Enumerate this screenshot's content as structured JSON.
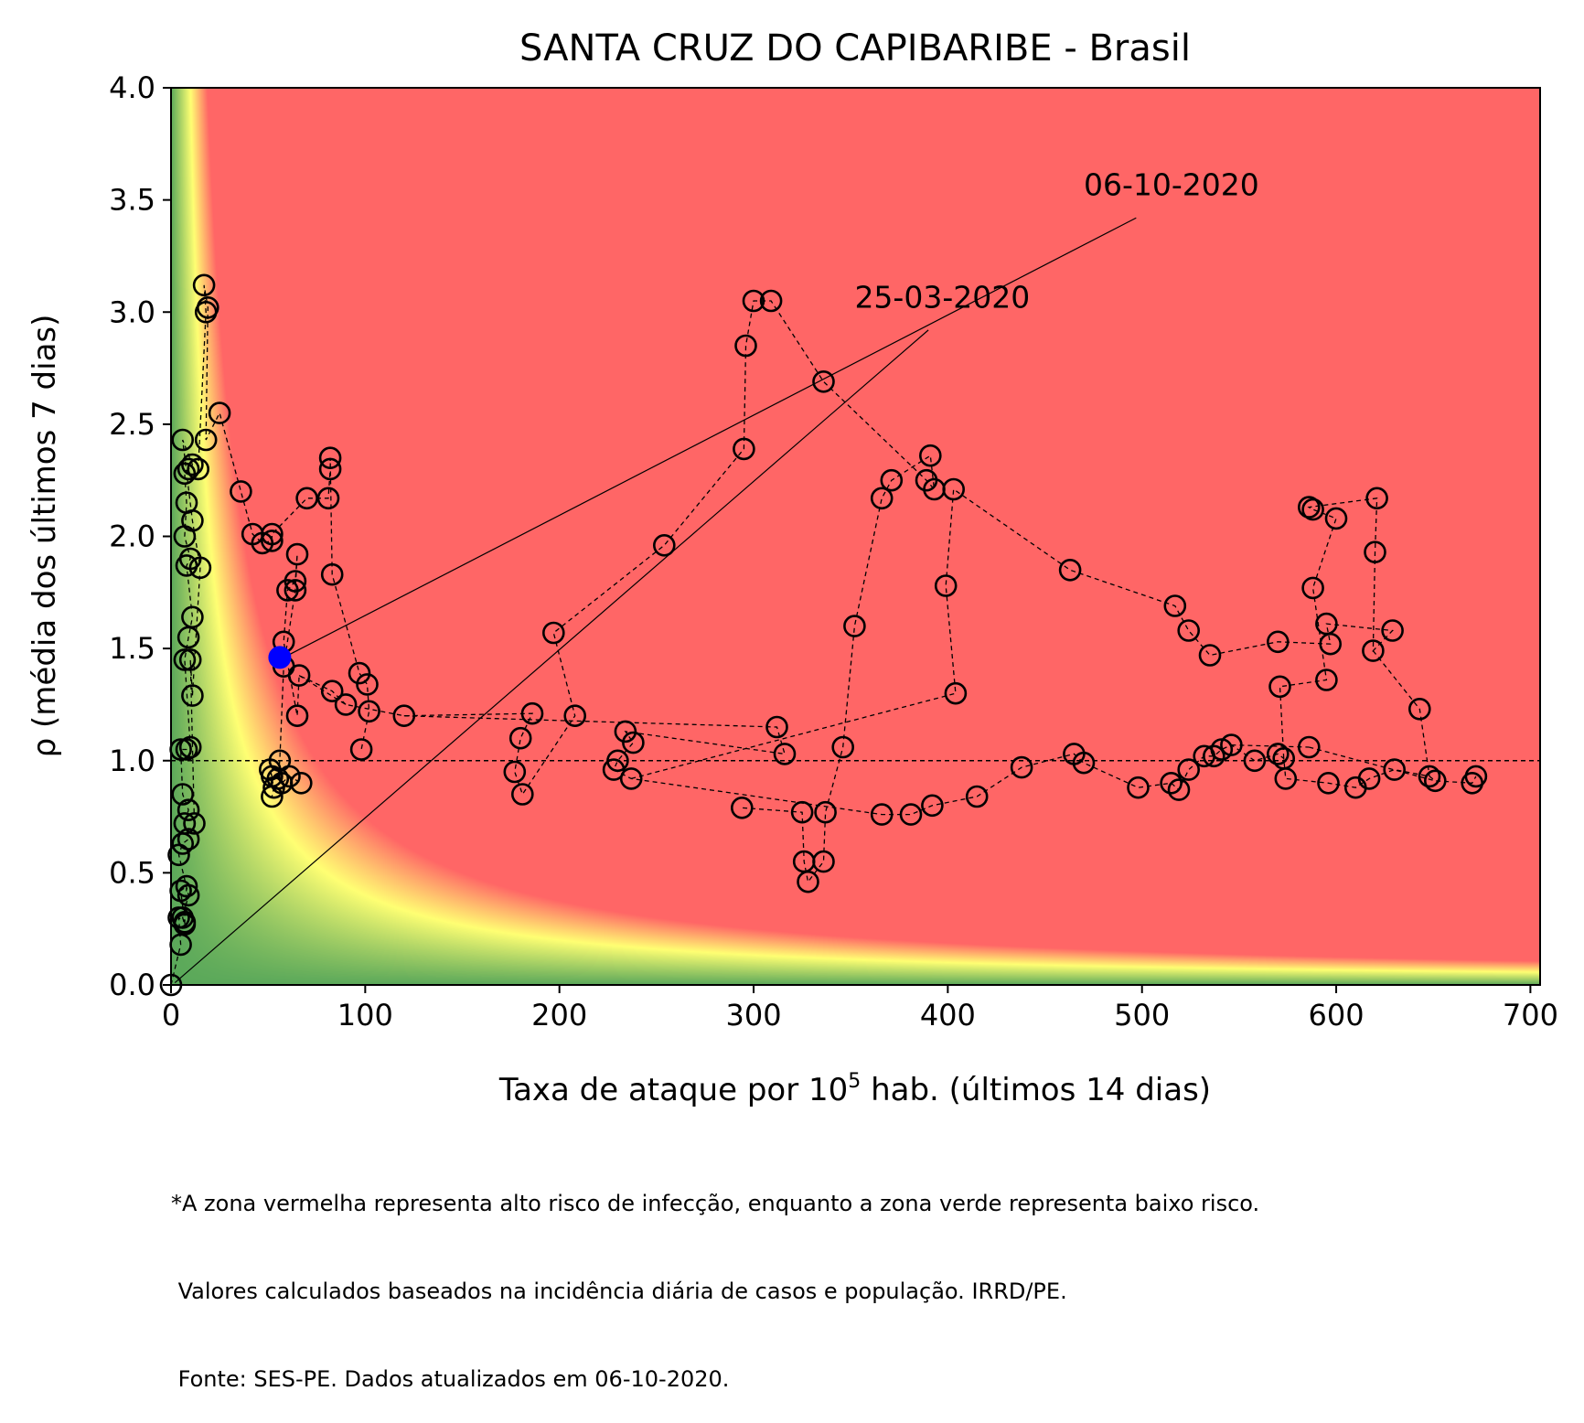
{
  "chart_data": {
    "type": "scatter",
    "title": "SANTA CRUZ DO CAPIBARIBE - Brasil",
    "xlabel": "Taxa de ataque por 10",
    "xlabel_sup": "5",
    "xlabel_suffix": " hab. (últimos 14 dias)",
    "ylabel": "ρ (média dos últimos 7 dias)",
    "xlim": [
      0,
      705
    ],
    "ylim": [
      0,
      4.0
    ],
    "xticks": [
      0,
      100,
      200,
      300,
      400,
      500,
      600,
      700
    ],
    "yticks": [
      "0.0",
      "0.5",
      "1.0",
      "1.5",
      "2.0",
      "2.5",
      "3.0",
      "3.5",
      "4.0"
    ],
    "reference_line_y": 1.0,
    "colors": {
      "high_risk": "#ff6666",
      "transition": "#ffff73",
      "low_risk": "#5aa85a",
      "current_point": "#0000ff",
      "marker_edge": "#000000"
    },
    "annotations": [
      {
        "text": "06-10-2020",
        "text_x": 470,
        "text_y": 3.52,
        "arrow_from": [
          497,
          3.42
        ],
        "arrow_to": [
          58,
          1.46
        ]
      },
      {
        "text": "25-03-2020",
        "text_x": 352,
        "text_y": 3.02,
        "arrow_from": [
          390,
          2.92
        ],
        "arrow_to": [
          2,
          0.01
        ]
      }
    ],
    "current_point": {
      "x": 56,
      "y": 1.46
    },
    "points": [
      [
        0,
        0
      ],
      [
        5,
        0.18
      ],
      [
        4,
        0.3
      ],
      [
        7,
        0.28
      ],
      [
        5,
        0.42
      ],
      [
        8,
        0.44
      ],
      [
        7,
        0.27
      ],
      [
        6,
        0.3
      ],
      [
        9,
        0.4
      ],
      [
        4,
        0.58
      ],
      [
        6,
        0.63
      ],
      [
        9,
        0.65
      ],
      [
        7,
        0.72
      ],
      [
        9,
        0.78
      ],
      [
        6,
        0.85
      ],
      [
        5,
        1.05
      ],
      [
        8,
        1.05
      ],
      [
        10,
        1.06
      ],
      [
        7,
        1.45
      ],
      [
        9,
        1.55
      ],
      [
        11,
        1.64
      ],
      [
        8,
        1.87
      ],
      [
        10,
        1.9
      ],
      [
        7,
        2.0
      ],
      [
        8,
        2.15
      ],
      [
        7,
        2.28
      ],
      [
        9,
        2.3
      ],
      [
        11,
        2.32
      ],
      [
        6,
        2.43
      ],
      [
        11,
        2.07
      ],
      [
        15,
        1.86
      ],
      [
        11,
        1.29
      ],
      [
        10,
        1.45
      ],
      [
        12,
        0.72
      ],
      [
        14,
        2.3
      ],
      [
        18,
        3.0
      ],
      [
        17,
        3.12
      ],
      [
        19,
        3.02
      ],
      [
        18,
        2.43
      ],
      [
        25,
        2.55
      ],
      [
        36,
        2.2
      ],
      [
        42,
        2.01
      ],
      [
        47,
        1.97
      ],
      [
        52,
        1.98
      ],
      [
        52,
        2.01
      ],
      [
        70,
        2.17
      ],
      [
        81,
        2.17
      ],
      [
        82,
        2.3
      ],
      [
        82,
        2.35
      ],
      [
        83,
        1.83
      ],
      [
        97,
        1.39
      ],
      [
        101,
        1.34
      ],
      [
        102,
        1.22
      ],
      [
        98,
        1.05
      ],
      [
        90,
        1.25
      ],
      [
        83,
        1.31
      ],
      [
        66,
        1.38
      ],
      [
        65,
        1.2
      ],
      [
        58,
        1.53
      ],
      [
        60,
        1.76
      ],
      [
        64,
        1.8
      ],
      [
        65,
        1.92
      ],
      [
        64,
        1.76
      ],
      [
        58,
        1.42
      ],
      [
        56,
        1.0
      ],
      [
        55,
        0.92
      ],
      [
        57,
        0.9
      ],
      [
        61,
        0.93
      ],
      [
        67,
        0.9
      ],
      [
        52,
        0.93
      ],
      [
        51,
        0.96
      ],
      [
        53,
        0.88
      ],
      [
        52,
        0.84
      ],
      [
        120,
        1.2
      ],
      [
        186,
        1.21
      ],
      [
        180,
        1.1
      ],
      [
        177,
        0.95
      ],
      [
        181,
        0.85
      ],
      [
        208,
        1.2
      ],
      [
        197,
        1.57
      ],
      [
        254,
        1.96
      ],
      [
        295,
        2.39
      ],
      [
        296,
        2.85
      ],
      [
        300,
        3.05
      ],
      [
        309,
        3.05
      ],
      [
        336,
        2.69
      ],
      [
        389,
        2.25
      ],
      [
        393,
        2.21
      ],
      [
        391,
        2.36
      ],
      [
        371,
        2.25
      ],
      [
        366,
        2.17
      ],
      [
        352,
        1.6
      ],
      [
        346,
        1.06
      ],
      [
        337,
        0.77
      ],
      [
        336,
        0.55
      ],
      [
        328,
        0.46
      ],
      [
        326,
        0.55
      ],
      [
        325,
        0.77
      ],
      [
        294,
        0.79
      ],
      [
        312,
        1.15
      ],
      [
        316,
        1.03
      ],
      [
        234,
        1.13
      ],
      [
        238,
        1.08
      ],
      [
        230,
        1.0
      ],
      [
        228,
        0.96
      ],
      [
        237,
        0.92
      ],
      [
        366,
        0.76
      ],
      [
        381,
        0.76
      ],
      [
        392,
        0.8
      ],
      [
        415,
        0.84
      ],
      [
        438,
        0.97
      ],
      [
        465,
        1.03
      ],
      [
        470,
        0.99
      ],
      [
        498,
        0.88
      ],
      [
        515,
        0.9
      ],
      [
        519,
        0.87
      ],
      [
        524,
        0.96
      ],
      [
        532,
        1.02
      ],
      [
        537,
        1.02
      ],
      [
        541,
        1.05
      ],
      [
        546,
        1.07
      ],
      [
        558,
        1.0
      ],
      [
        570,
        1.03
      ],
      [
        573,
        1.01
      ],
      [
        574,
        0.92
      ],
      [
        596,
        0.9
      ],
      [
        610,
        0.88
      ],
      [
        617,
        0.92
      ],
      [
        630,
        0.96
      ],
      [
        648,
        0.93
      ],
      [
        651,
        0.91
      ],
      [
        670,
        0.9
      ],
      [
        672,
        0.93
      ],
      [
        404,
        1.3
      ],
      [
        399,
        1.78
      ],
      [
        403,
        2.21
      ],
      [
        463,
        1.85
      ],
      [
        517,
        1.69
      ],
      [
        524,
        1.58
      ],
      [
        535,
        1.47
      ],
      [
        570,
        1.53
      ],
      [
        597,
        1.52
      ],
      [
        595,
        1.61
      ],
      [
        629,
        1.58
      ],
      [
        619,
        1.49
      ],
      [
        620,
        1.93
      ],
      [
        621,
        2.17
      ],
      [
        586,
        2.13
      ],
      [
        588,
        2.12
      ],
      [
        600,
        2.08
      ],
      [
        588,
        1.77
      ],
      [
        595,
        1.36
      ],
      [
        571,
        1.33
      ],
      [
        643,
        1.23
      ],
      [
        586,
        1.06
      ]
    ],
    "path_segments": [
      [
        [
          0,
          0
        ],
        [
          5,
          0.18
        ],
        [
          4,
          0.3
        ],
        [
          7,
          0.28
        ],
        [
          5,
          0.42
        ],
        [
          8,
          0.44
        ],
        [
          7,
          0.27
        ],
        [
          6,
          0.3
        ],
        [
          9,
          0.4
        ],
        [
          4,
          0.58
        ],
        [
          6,
          0.63
        ],
        [
          9,
          0.65
        ],
        [
          7,
          0.72
        ],
        [
          9,
          0.78
        ],
        [
          6,
          0.85
        ],
        [
          5,
          1.05
        ],
        [
          8,
          1.05
        ],
        [
          10,
          1.06
        ],
        [
          7,
          1.45
        ],
        [
          9,
          1.55
        ],
        [
          11,
          1.64
        ],
        [
          8,
          1.87
        ],
        [
          10,
          1.9
        ],
        [
          7,
          2.0
        ],
        [
          8,
          2.15
        ],
        [
          7,
          2.28
        ],
        [
          9,
          2.3
        ],
        [
          11,
          2.32
        ],
        [
          6,
          2.43
        ],
        [
          11,
          2.07
        ],
        [
          15,
          1.86
        ],
        [
          11,
          1.29
        ],
        [
          10,
          1.45
        ],
        [
          12,
          0.72
        ]
      ],
      [
        [
          14,
          2.3
        ],
        [
          18,
          3.0
        ],
        [
          17,
          3.12
        ],
        [
          19,
          3.02
        ],
        [
          18,
          2.43
        ],
        [
          25,
          2.55
        ],
        [
          36,
          2.2
        ],
        [
          42,
          2.01
        ],
        [
          47,
          1.97
        ],
        [
          52,
          1.98
        ],
        [
          52,
          2.01
        ],
        [
          70,
          2.17
        ],
        [
          81,
          2.17
        ],
        [
          82,
          2.3
        ],
        [
          82,
          2.35
        ],
        [
          83,
          1.83
        ],
        [
          97,
          1.39
        ],
        [
          101,
          1.34
        ],
        [
          102,
          1.22
        ],
        [
          98,
          1.05
        ]
      ],
      [
        [
          90,
          1.25
        ],
        [
          83,
          1.31
        ],
        [
          66,
          1.38
        ],
        [
          65,
          1.2
        ],
        [
          58,
          1.53
        ],
        [
          60,
          1.76
        ],
        [
          64,
          1.8
        ],
        [
          65,
          1.92
        ],
        [
          64,
          1.76
        ],
        [
          58,
          1.42
        ],
        [
          56,
          1.0
        ],
        [
          55,
          0.92
        ],
        [
          57,
          0.9
        ],
        [
          61,
          0.93
        ],
        [
          67,
          0.9
        ]
      ],
      [
        [
          52,
          0.93
        ],
        [
          51,
          0.96
        ],
        [
          53,
          0.88
        ],
        [
          52,
          0.84
        ]
      ],
      [
        [
          66,
          1.38
        ],
        [
          90,
          1.25
        ],
        [
          120,
          1.2
        ],
        [
          186,
          1.21
        ],
        [
          180,
          1.1
        ],
        [
          177,
          0.95
        ],
        [
          181,
          0.85
        ],
        [
          208,
          1.2
        ],
        [
          197,
          1.57
        ],
        [
          254,
          1.96
        ],
        [
          295,
          2.39
        ],
        [
          296,
          2.85
        ],
        [
          300,
          3.05
        ],
        [
          309,
          3.05
        ],
        [
          336,
          2.69
        ],
        [
          389,
          2.25
        ],
        [
          393,
          2.21
        ],
        [
          391,
          2.36
        ],
        [
          371,
          2.25
        ],
        [
          366,
          2.17
        ],
        [
          352,
          1.6
        ],
        [
          346,
          1.06
        ],
        [
          337,
          0.77
        ],
        [
          336,
          0.55
        ],
        [
          328,
          0.46
        ],
        [
          326,
          0.55
        ],
        [
          325,
          0.77
        ],
        [
          294,
          0.79
        ]
      ],
      [
        [
          120,
          1.2
        ],
        [
          312,
          1.15
        ],
        [
          316,
          1.03
        ],
        [
          234,
          1.13
        ],
        [
          238,
          1.08
        ],
        [
          230,
          1.0
        ],
        [
          228,
          0.96
        ],
        [
          237,
          0.92
        ],
        [
          366,
          0.76
        ],
        [
          381,
          0.76
        ],
        [
          392,
          0.8
        ],
        [
          415,
          0.84
        ],
        [
          438,
          0.97
        ],
        [
          465,
          1.03
        ],
        [
          470,
          0.99
        ],
        [
          498,
          0.88
        ],
        [
          515,
          0.9
        ],
        [
          519,
          0.87
        ],
        [
          524,
          0.96
        ],
        [
          532,
          1.02
        ],
        [
          537,
          1.02
        ],
        [
          541,
          1.05
        ],
        [
          546,
          1.07
        ],
        [
          558,
          1.0
        ],
        [
          570,
          1.03
        ],
        [
          573,
          1.01
        ],
        [
          574,
          0.92
        ],
        [
          596,
          0.9
        ],
        [
          610,
          0.88
        ],
        [
          617,
          0.92
        ],
        [
          630,
          0.96
        ],
        [
          648,
          0.93
        ],
        [
          651,
          0.91
        ],
        [
          670,
          0.9
        ],
        [
          672,
          0.93
        ]
      ],
      [
        [
          237,
          0.92
        ],
        [
          404,
          1.3
        ],
        [
          399,
          1.78
        ],
        [
          403,
          2.21
        ],
        [
          463,
          1.85
        ],
        [
          517,
          1.69
        ],
        [
          524,
          1.58
        ],
        [
          535,
          1.47
        ],
        [
          570,
          1.53
        ],
        [
          597,
          1.52
        ],
        [
          595,
          1.61
        ],
        [
          629,
          1.58
        ],
        [
          619,
          1.49
        ],
        [
          620,
          1.93
        ],
        [
          621,
          2.17
        ],
        [
          586,
          2.13
        ],
        [
          588,
          2.12
        ],
        [
          600,
          2.08
        ],
        [
          588,
          1.77
        ],
        [
          595,
          1.36
        ],
        [
          571,
          1.33
        ],
        [
          573,
          1.01
        ]
      ],
      [
        [
          619,
          1.49
        ],
        [
          643,
          1.23
        ],
        [
          648,
          0.93
        ]
      ],
      [
        [
          586,
          1.06
        ],
        [
          651,
          0.91
        ]
      ],
      [
        [
          546,
          1.07
        ],
        [
          586,
          1.06
        ]
      ]
    ],
    "footnote": [
      "*A zona vermelha representa alto risco de infecção, enquanto a zona verde representa baixo risco.",
      " Valores calculados baseados na incidência diária de casos e população. IRRD/PE.",
      " Fonte: SES-PE. Dados atualizados em 06-10-2020."
    ]
  }
}
